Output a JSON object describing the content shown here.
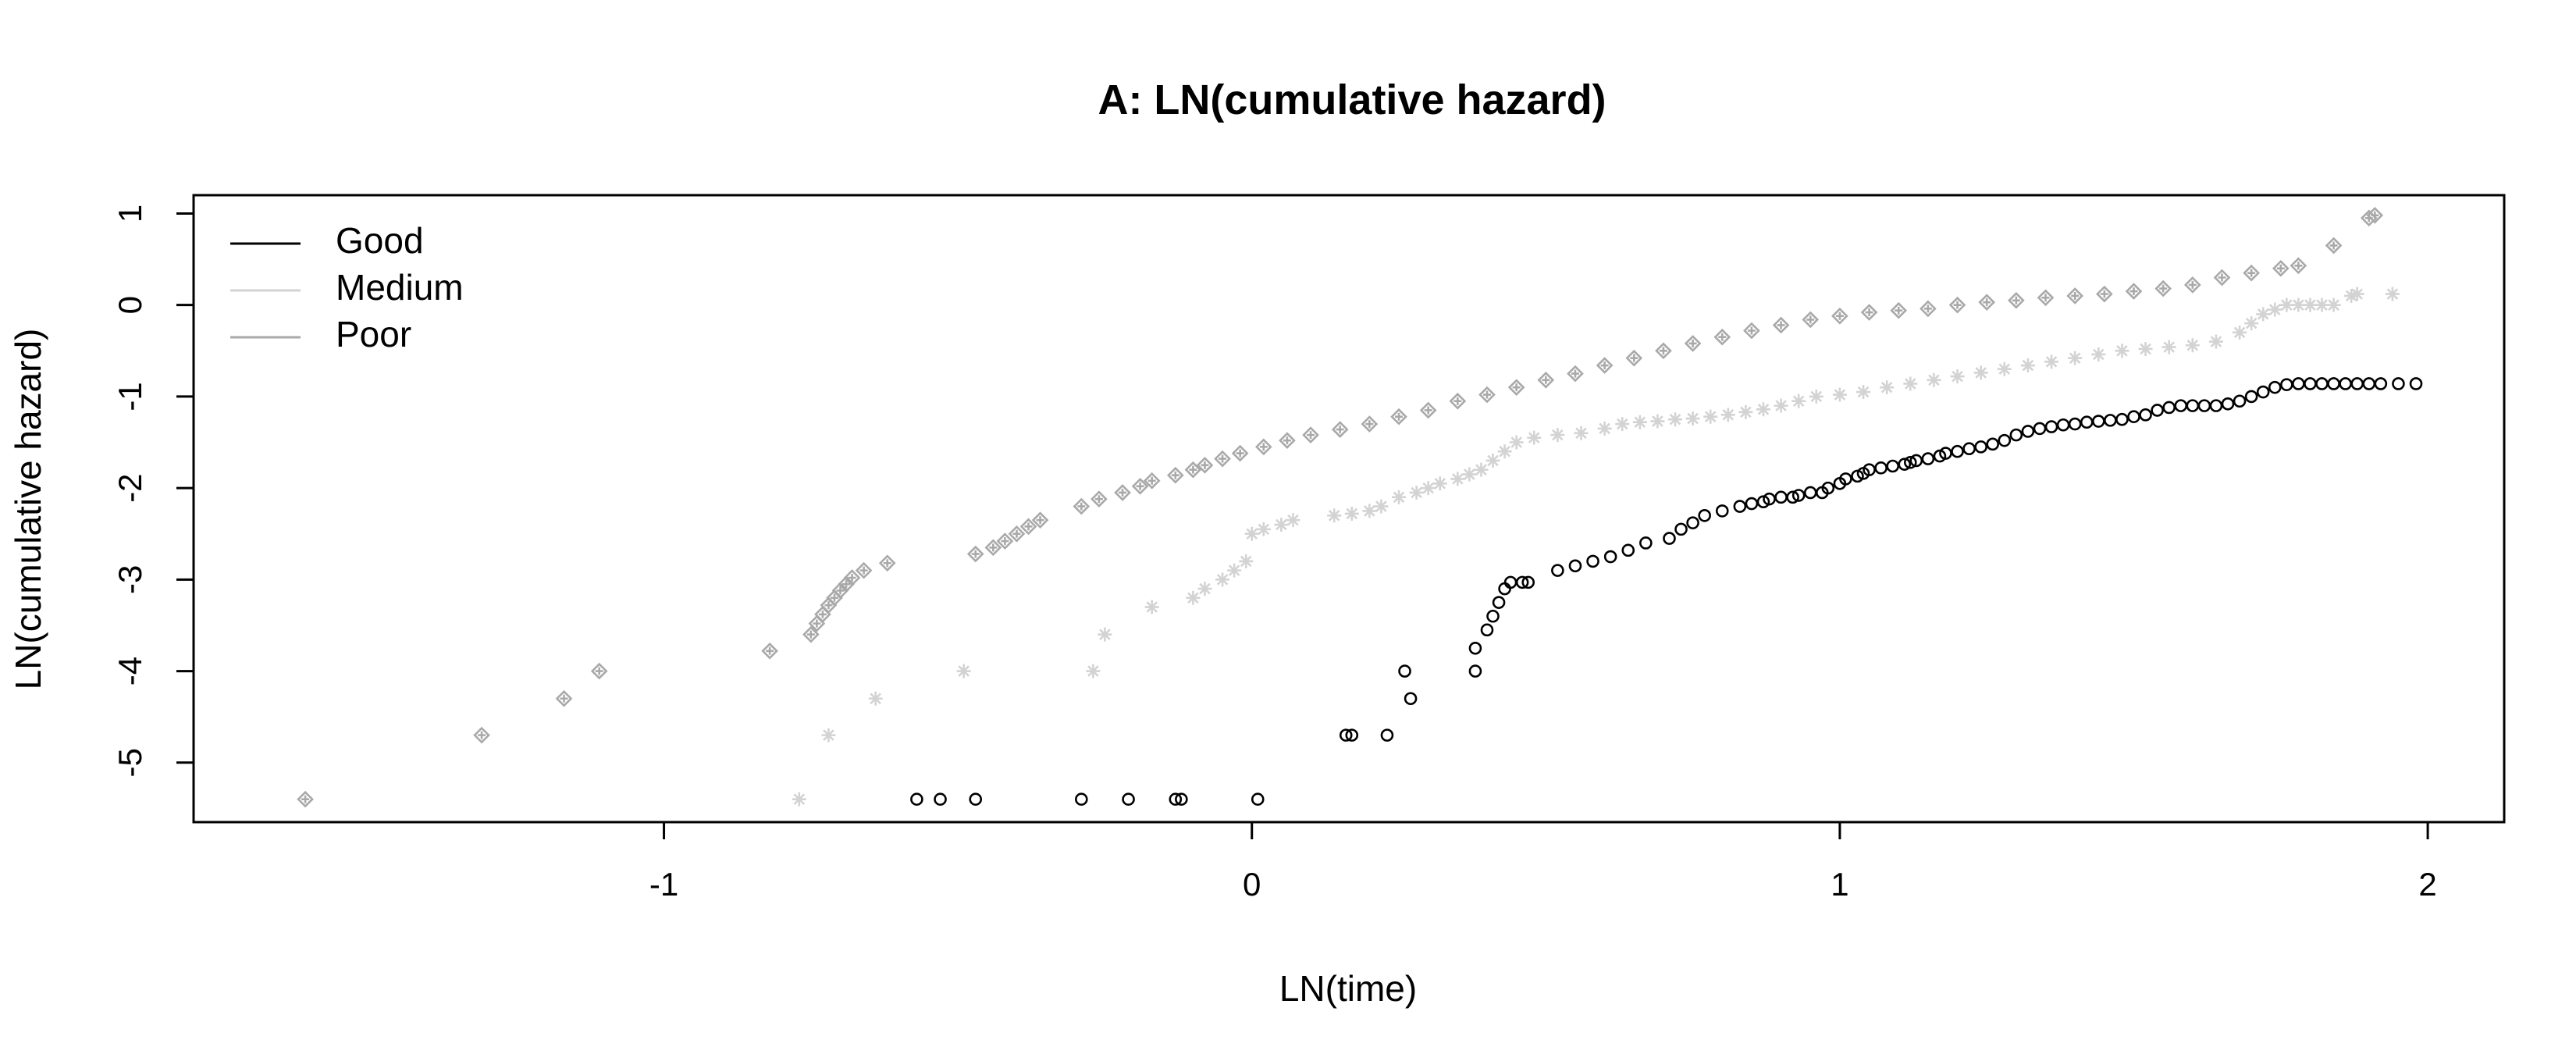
{
  "chart_data": {
    "type": "scatter",
    "title": "A: LN(cumulative hazard)",
    "xlabel": "LN(time)",
    "ylabel": "LN(cumulative hazard)",
    "xlim": [
      -1.8,
      2.13
    ],
    "ylim": [
      -5.65,
      1.2
    ],
    "xticks": [
      -1,
      0,
      1,
      2
    ],
    "yticks": [
      -5,
      -4,
      -3,
      -2,
      -1,
      0,
      1
    ],
    "grid": false,
    "legend_position": "top-left",
    "series": [
      {
        "name": "Good",
        "color": "#000000",
        "marker": "circle",
        "x": [
          -0.57,
          -0.53,
          -0.47,
          -0.29,
          -0.21,
          -0.13,
          -0.12,
          0.01,
          0.16,
          0.17,
          0.23,
          0.27,
          0.26,
          0.38,
          0.38,
          0.4,
          0.41,
          0.42,
          0.43,
          0.44,
          0.46,
          0.47,
          0.52,
          0.55,
          0.58,
          0.61,
          0.64,
          0.67,
          0.71,
          0.73,
          0.75,
          0.77,
          0.8,
          0.83,
          0.85,
          0.87,
          0.88,
          0.9,
          0.92,
          0.93,
          0.95,
          0.97,
          0.98,
          1.0,
          1.01,
          1.03,
          1.04,
          1.05,
          1.07,
          1.09,
          1.11,
          1.12,
          1.13,
          1.15,
          1.17,
          1.18,
          1.2,
          1.22,
          1.24,
          1.26,
          1.28,
          1.3,
          1.32,
          1.34,
          1.36,
          1.38,
          1.4,
          1.42,
          1.44,
          1.46,
          1.48,
          1.5,
          1.52,
          1.54,
          1.56,
          1.58,
          1.6,
          1.62,
          1.64,
          1.66,
          1.68,
          1.7,
          1.72,
          1.74,
          1.76,
          1.78,
          1.8,
          1.82,
          1.84,
          1.86,
          1.88,
          1.9,
          1.92,
          1.95,
          1.98
        ],
        "y": [
          -5.4,
          -5.4,
          -5.4,
          -5.4,
          -5.4,
          -5.4,
          -5.4,
          -5.4,
          -4.7,
          -4.7,
          -4.7,
          -4.3,
          -4.0,
          -4.0,
          -3.75,
          -3.55,
          -3.4,
          -3.25,
          -3.1,
          -3.03,
          -3.03,
          -3.03,
          -2.9,
          -2.85,
          -2.8,
          -2.75,
          -2.68,
          -2.6,
          -2.55,
          -2.45,
          -2.38,
          -2.3,
          -2.25,
          -2.2,
          -2.17,
          -2.15,
          -2.12,
          -2.1,
          -2.1,
          -2.08,
          -2.05,
          -2.05,
          -2.0,
          -1.95,
          -1.9,
          -1.87,
          -1.84,
          -1.8,
          -1.78,
          -1.76,
          -1.74,
          -1.72,
          -1.7,
          -1.68,
          -1.65,
          -1.62,
          -1.6,
          -1.57,
          -1.55,
          -1.52,
          -1.48,
          -1.42,
          -1.38,
          -1.35,
          -1.33,
          -1.31,
          -1.3,
          -1.28,
          -1.27,
          -1.26,
          -1.25,
          -1.22,
          -1.2,
          -1.15,
          -1.12,
          -1.1,
          -1.1,
          -1.1,
          -1.1,
          -1.08,
          -1.05,
          -1.0,
          -0.95,
          -0.9,
          -0.87,
          -0.86,
          -0.86,
          -0.86,
          -0.86,
          -0.86,
          -0.86,
          -0.86,
          -0.86,
          -0.86,
          -0.86
        ]
      },
      {
        "name": "Medium",
        "color": "#d3d3d3",
        "marker": "asterisk",
        "x": [
          -0.77,
          -0.72,
          -0.64,
          -0.49,
          -0.27,
          -0.25,
          -0.17,
          -0.1,
          -0.08,
          -0.05,
          -0.03,
          -0.01,
          0.0,
          0.02,
          0.05,
          0.07,
          0.14,
          0.17,
          0.2,
          0.22,
          0.25,
          0.28,
          0.3,
          0.32,
          0.35,
          0.37,
          0.39,
          0.41,
          0.43,
          0.45,
          0.48,
          0.52,
          0.56,
          0.6,
          0.63,
          0.66,
          0.69,
          0.72,
          0.75,
          0.78,
          0.81,
          0.84,
          0.87,
          0.9,
          0.93,
          0.96,
          1.0,
          1.04,
          1.08,
          1.12,
          1.16,
          1.2,
          1.24,
          1.28,
          1.32,
          1.36,
          1.4,
          1.44,
          1.48,
          1.52,
          1.56,
          1.6,
          1.64,
          1.68,
          1.7,
          1.72,
          1.74,
          1.76,
          1.78,
          1.8,
          1.82,
          1.84,
          1.87,
          1.88,
          1.94
        ],
        "y": [
          -5.4,
          -4.7,
          -4.3,
          -4.0,
          -4.0,
          -3.6,
          -3.3,
          -3.2,
          -3.1,
          -3.0,
          -2.9,
          -2.8,
          -2.5,
          -2.45,
          -2.4,
          -2.35,
          -2.3,
          -2.28,
          -2.25,
          -2.2,
          -2.1,
          -2.05,
          -2.0,
          -1.95,
          -1.9,
          -1.85,
          -1.8,
          -1.7,
          -1.6,
          -1.5,
          -1.45,
          -1.42,
          -1.4,
          -1.35,
          -1.3,
          -1.28,
          -1.27,
          -1.25,
          -1.24,
          -1.22,
          -1.2,
          -1.17,
          -1.14,
          -1.1,
          -1.05,
          -1.0,
          -0.98,
          -0.95,
          -0.9,
          -0.86,
          -0.82,
          -0.78,
          -0.74,
          -0.7,
          -0.66,
          -0.62,
          -0.58,
          -0.54,
          -0.5,
          -0.48,
          -0.46,
          -0.44,
          -0.4,
          -0.3,
          -0.2,
          -0.1,
          -0.05,
          0.0,
          0.0,
          0.0,
          0.0,
          0.0,
          0.1,
          0.12,
          0.12
        ]
      },
      {
        "name": "Poor",
        "color": "#a9a9a9",
        "marker": "diamond-plus",
        "x": [
          -1.61,
          -1.31,
          -1.17,
          -1.11,
          -0.82,
          -0.75,
          -0.74,
          -0.73,
          -0.72,
          -0.71,
          -0.7,
          -0.69,
          -0.68,
          -0.66,
          -0.62,
          -0.47,
          -0.44,
          -0.42,
          -0.4,
          -0.38,
          -0.36,
          -0.29,
          -0.26,
          -0.22,
          -0.19,
          -0.17,
          -0.13,
          -0.1,
          -0.08,
          -0.05,
          -0.02,
          0.02,
          0.06,
          0.1,
          0.15,
          0.2,
          0.25,
          0.3,
          0.35,
          0.4,
          0.45,
          0.5,
          0.55,
          0.6,
          0.65,
          0.7,
          0.75,
          0.8,
          0.85,
          0.9,
          0.95,
          1.0,
          1.05,
          1.1,
          1.15,
          1.2,
          1.25,
          1.3,
          1.35,
          1.4,
          1.45,
          1.5,
          1.55,
          1.6,
          1.65,
          1.7,
          1.75,
          1.78,
          1.84,
          1.9,
          1.91
        ],
        "y": [
          -5.4,
          -4.7,
          -4.3,
          -4.0,
          -3.78,
          -3.6,
          -3.48,
          -3.38,
          -3.28,
          -3.2,
          -3.12,
          -3.05,
          -2.98,
          -2.9,
          -2.82,
          -2.72,
          -2.65,
          -2.58,
          -2.5,
          -2.42,
          -2.35,
          -2.2,
          -2.12,
          -2.05,
          -1.98,
          -1.92,
          -1.86,
          -1.8,
          -1.75,
          -1.68,
          -1.62,
          -1.55,
          -1.48,
          -1.42,
          -1.36,
          -1.3,
          -1.22,
          -1.15,
          -1.05,
          -0.98,
          -0.9,
          -0.82,
          -0.75,
          -0.66,
          -0.58,
          -0.5,
          -0.42,
          -0.35,
          -0.28,
          -0.22,
          -0.16,
          -0.12,
          -0.08,
          -0.06,
          -0.04,
          0.0,
          0.03,
          0.05,
          0.08,
          0.1,
          0.12,
          0.15,
          0.18,
          0.22,
          0.3,
          0.35,
          0.4,
          0.43,
          0.65,
          0.95,
          0.98
        ]
      }
    ]
  }
}
